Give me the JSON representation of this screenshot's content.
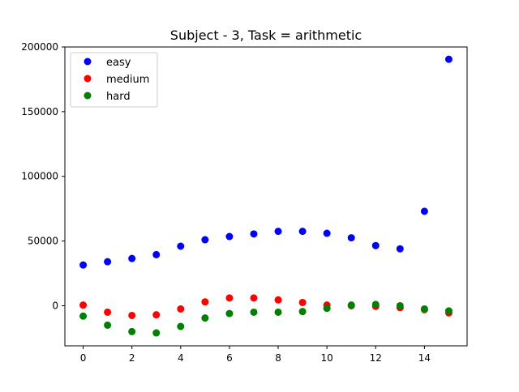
{
  "chart_data": {
    "type": "scatter",
    "title": "Subject - 3, Task = arithmetic",
    "xlabel": "",
    "ylabel": "",
    "xlim": [
      -0.75,
      15.75
    ],
    "ylim": [
      -31000,
      200000
    ],
    "x_ticks": [
      0,
      2,
      4,
      6,
      8,
      10,
      12,
      14
    ],
    "y_ticks": [
      0,
      50000,
      100000,
      150000,
      200000
    ],
    "x_tick_labels": [
      "0",
      "2",
      "4",
      "6",
      "8",
      "10",
      "12",
      "14"
    ],
    "y_tick_labels": [
      "0",
      "50000",
      "100000",
      "150000",
      "200000"
    ],
    "grid": false,
    "legend_position": "top-left",
    "x": [
      0,
      1,
      2,
      3,
      4,
      5,
      6,
      7,
      8,
      9,
      10,
      11,
      12,
      13,
      14,
      15
    ],
    "series": [
      {
        "name": "easy",
        "color": "#0000ff",
        "values": [
          31500,
          34000,
          36500,
          39500,
          46000,
          51000,
          53500,
          55500,
          57500,
          57500,
          56000,
          52500,
          46500,
          44000,
          73000,
          190500
        ]
      },
      {
        "name": "medium",
        "color": "#ff0000",
        "values": [
          500,
          -5000,
          -7500,
          -7000,
          -2500,
          3000,
          6000,
          6000,
          4500,
          2500,
          500,
          0,
          -500,
          -1500,
          -3000,
          -5500
        ]
      },
      {
        "name": "hard",
        "color": "#008000",
        "values": [
          -8000,
          -15000,
          -20000,
          -21000,
          -16000,
          -9500,
          -6000,
          -5000,
          -5000,
          -4500,
          -2000,
          500,
          1000,
          0,
          -2500,
          -4000
        ]
      }
    ]
  }
}
